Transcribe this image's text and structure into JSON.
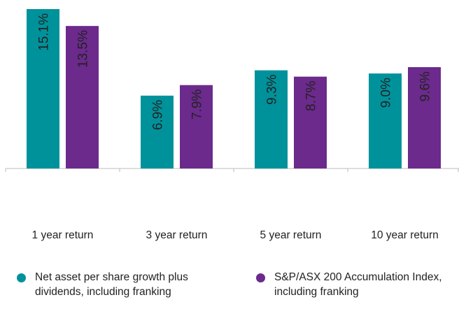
{
  "chart_data": {
    "type": "bar",
    "categories": [
      "1 year return",
      "3 year return",
      "5 year return",
      "10 year return"
    ],
    "series": [
      {
        "name": "Net asset per share growth plus dividends, including franking",
        "color": "#00929b",
        "values": [
          15.1,
          6.9,
          9.3,
          9.0
        ],
        "value_labels": [
          "15.1%",
          "6.9%",
          "9.3%",
          "9.0%"
        ]
      },
      {
        "name": "S&P/ASX 200 Accumulation Index, including franking",
        "color": "#6b2a8c",
        "values": [
          13.5,
          7.9,
          8.7,
          9.6
        ],
        "value_labels": [
          "13.5%",
          "7.9%",
          "8.7%",
          "9.6%"
        ]
      }
    ]
  }
}
